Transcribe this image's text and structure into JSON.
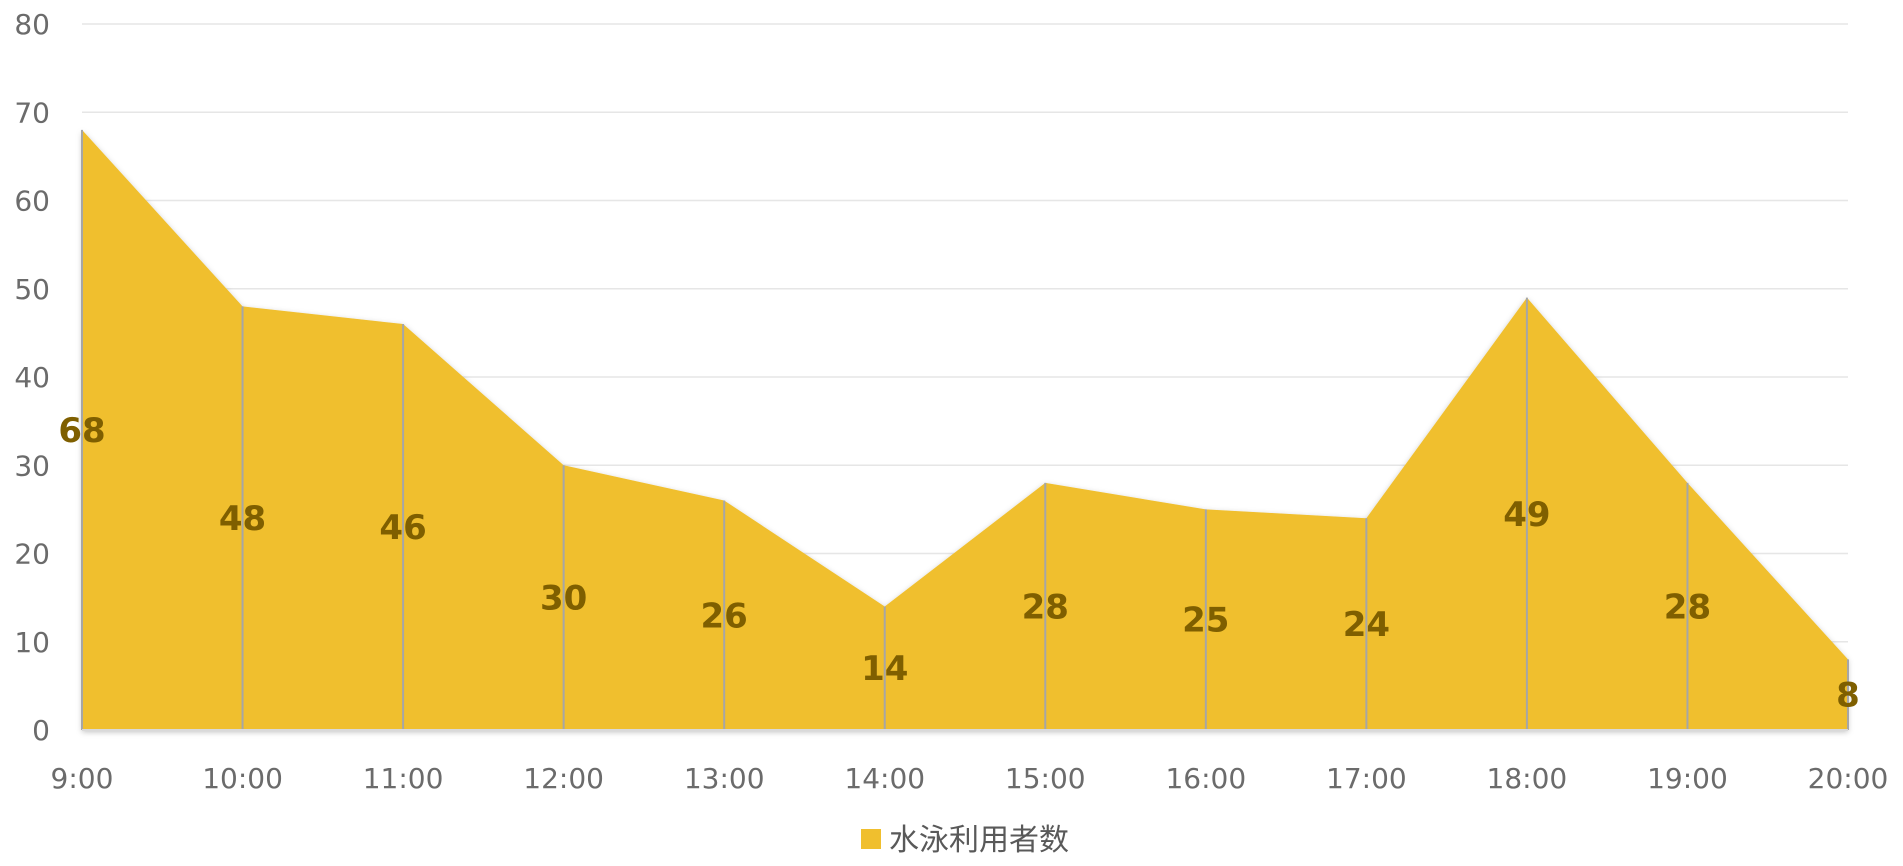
{
  "chart_data": {
    "type": "area",
    "categories": [
      "9:00",
      "10:00",
      "11:00",
      "12:00",
      "13:00",
      "14:00",
      "15:00",
      "16:00",
      "17:00",
      "18:00",
      "19:00",
      "20:00"
    ],
    "series": [
      {
        "name": "水泳利用者数",
        "values": [
          68,
          48,
          46,
          30,
          26,
          14,
          28,
          25,
          24,
          49,
          28,
          8
        ],
        "color": "#f0bf2e"
      }
    ],
    "ylim": [
      0,
      80
    ],
    "yticks": [
      0,
      10,
      20,
      30,
      40,
      50,
      60,
      70,
      80
    ],
    "grid": true,
    "legend": "bottom",
    "data_labels": true
  }
}
